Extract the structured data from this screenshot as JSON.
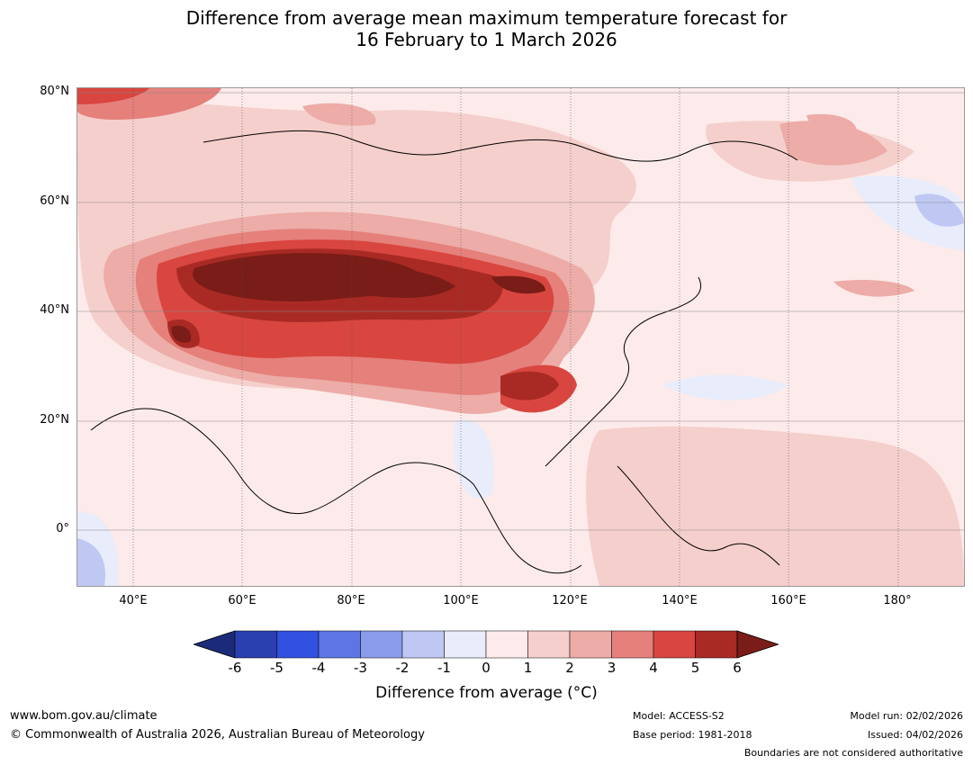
{
  "title_line1": "Difference from average mean maximum temperature forecast for",
  "title_line2": "16 February to 1 March 2026",
  "lat_labels": [
    "80°N",
    "60°N",
    "40°N",
    "20°N",
    "0°"
  ],
  "lon_labels": [
    "40°E",
    "60°E",
    "80°E",
    "100°E",
    "120°E",
    "140°E",
    "160°E",
    "180°"
  ],
  "legend": {
    "ticks": [
      "-6",
      "-5",
      "-4",
      "-3",
      "-2",
      "-1",
      "0",
      "1",
      "2",
      "3",
      "4",
      "5",
      "6"
    ],
    "colors": [
      "#1c2a7a",
      "#2a3fb0",
      "#3150e0",
      "#5e75e6",
      "#8a9bea",
      "#bfc8f3",
      "#e8ecfb",
      "#fcebea",
      "#f5cfcc",
      "#edaca7",
      "#e5807b",
      "#d8463f",
      "#a92a24",
      "#7a1c17"
    ],
    "label": "Difference from average (°C)"
  },
  "footer": {
    "url": "www.bom.gov.au/climate",
    "copyright": "© Commonwealth of Australia 2026, Australian Bureau of Meteorology",
    "model": "Model: ACCESS-S2",
    "base_period": "Base period: 1981-2018",
    "model_run": "Model run: 02/02/2026",
    "issued": "Issued: 04/02/2026",
    "disclaimer": "Boundaries are not considered authoritative"
  }
}
